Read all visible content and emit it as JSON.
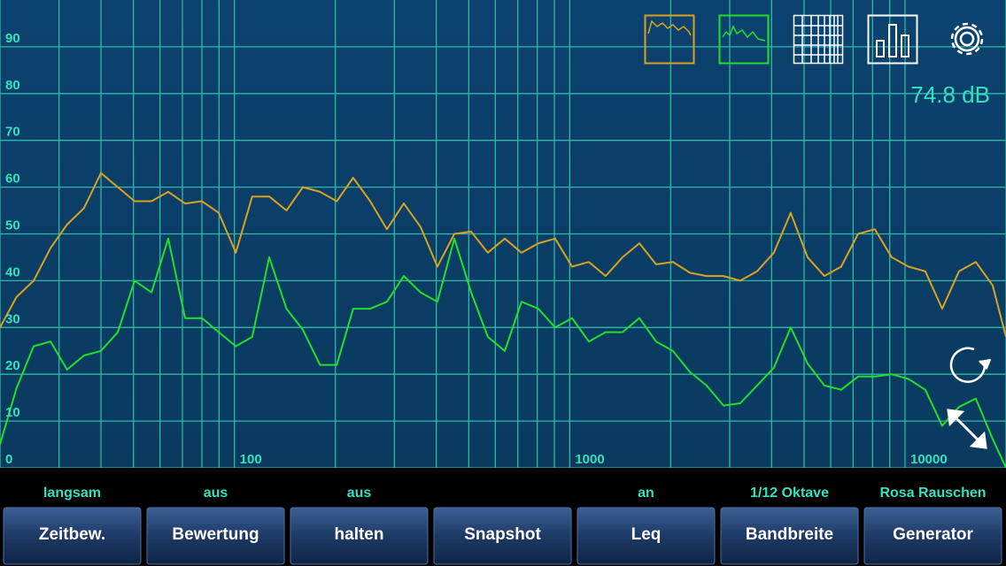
{
  "chart_data": {
    "type": "line",
    "x": [
      20,
      22.4,
      25.2,
      28.3,
      31.7,
      35.6,
      40,
      44.9,
      50.4,
      56.6,
      63.5,
      71.3,
      80,
      89.8,
      101,
      113,
      127,
      143,
      160,
      180,
      202,
      226,
      254,
      285,
      320,
      359,
      403,
      453,
      508,
      570,
      640,
      718,
      806,
      905,
      1016,
      1140,
      1280,
      1437,
      1613,
      1810,
      2032,
      2281,
      2560,
      2874,
      3225,
      3620,
      4064,
      4561,
      5120,
      5747,
      6451,
      7241,
      8127,
      9123,
      10240,
      11494,
      12902,
      14482,
      16255,
      18245,
      20000
    ],
    "series": [
      {
        "color": "#d9a31f",
        "values": [
          30,
          36.5,
          40,
          47,
          52,
          55.5,
          63,
          60,
          57,
          57,
          59,
          56.5,
          57,
          54.5,
          46,
          58,
          58,
          55,
          60,
          59,
          57,
          62,
          57,
          51,
          56.5,
          51.5,
          43,
          50,
          50.5,
          46,
          49,
          46,
          48,
          49,
          43,
          44,
          41,
          45,
          48,
          43.5,
          44,
          41.7,
          41,
          41,
          40,
          42,
          46,
          54.5,
          45,
          41,
          43,
          50,
          51,
          45,
          43,
          42,
          34,
          42,
          44,
          39,
          28
        ]
      },
      {
        "color": "#22e02a",
        "values": [
          5,
          17,
          26,
          27,
          21,
          24,
          25,
          29,
          40,
          37.5,
          49,
          32,
          32,
          29,
          26,
          28,
          45,
          34,
          29.5,
          22,
          22,
          34,
          34,
          35.5,
          41,
          37.5,
          35.5,
          49,
          37.5,
          28,
          25,
          35.5,
          34,
          30,
          32,
          27,
          29,
          29,
          32,
          27,
          25,
          20.5,
          17.6,
          13.3,
          13.8,
          17.6,
          21.4,
          30,
          22.3,
          17.6,
          16.7,
          19.5,
          19.5,
          20,
          19,
          16.7,
          9,
          13,
          14.8,
          6.2,
          0
        ]
      }
    ],
    "xscale": "log",
    "xlim": [
      20,
      20000
    ],
    "ylim": [
      0,
      100
    ],
    "xticks": [
      100,
      1000,
      10000
    ],
    "xminorticks": [
      20,
      30,
      40,
      50,
      60,
      70,
      80,
      90,
      200,
      300,
      400,
      500,
      600,
      700,
      800,
      900,
      2000,
      3000,
      4000,
      5000,
      6000,
      7000,
      8000,
      9000,
      20000
    ],
    "yticks": [
      0,
      10,
      20,
      30,
      40,
      50,
      60,
      70,
      80,
      90
    ],
    "grid": true
  },
  "readout": "74.8 dB",
  "controls": [
    {
      "status": "langsam",
      "button": "Zeitbew."
    },
    {
      "status": "aus",
      "button": "Bewertung"
    },
    {
      "status": "aus",
      "button": "halten"
    },
    {
      "button": "Snapshot"
    },
    {
      "status": "an",
      "button": "Leq"
    },
    {
      "status": "1/12 Oktave",
      "button": "Bandbreite"
    },
    {
      "status": "Rosa Rauschen",
      "button": "Generator"
    }
  ]
}
